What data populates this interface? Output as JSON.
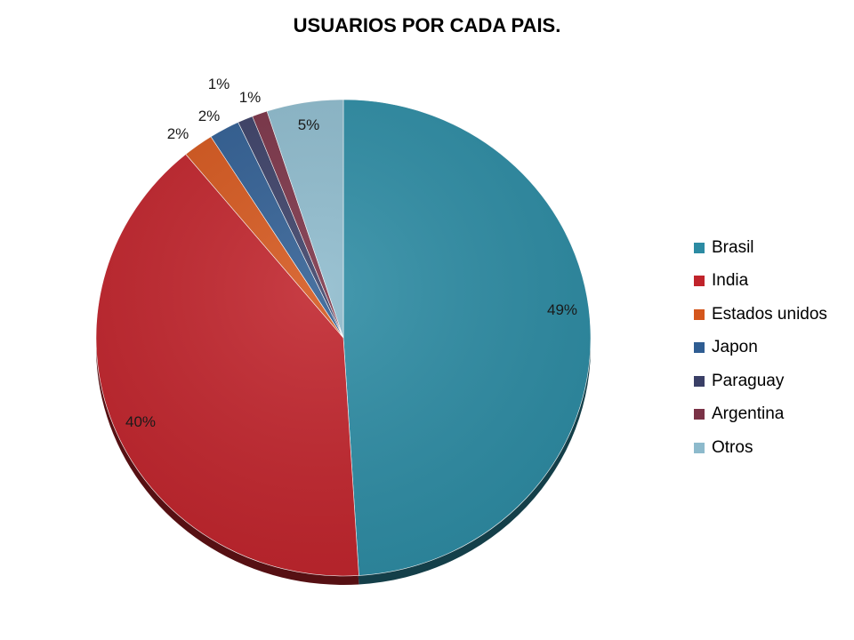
{
  "chart_data": {
    "type": "pie",
    "title": "USUARIOS POR CADA PAIS.",
    "categories": [
      "Brasil",
      "India",
      "Estados unidos",
      "Japon",
      "Paraguay",
      "Argentina",
      "Otros"
    ],
    "values": [
      49,
      40,
      2,
      2,
      1,
      1,
      5
    ],
    "labels": [
      "49%",
      "40%",
      "2%",
      "2%",
      "1%",
      "1%",
      "5%"
    ],
    "colors": [
      "#2C8BA3",
      "#C0232B",
      "#D4561C",
      "#2F5D92",
      "#3A3F66",
      "#7A3246",
      "#8DBACC"
    ],
    "legend_position": "right"
  }
}
